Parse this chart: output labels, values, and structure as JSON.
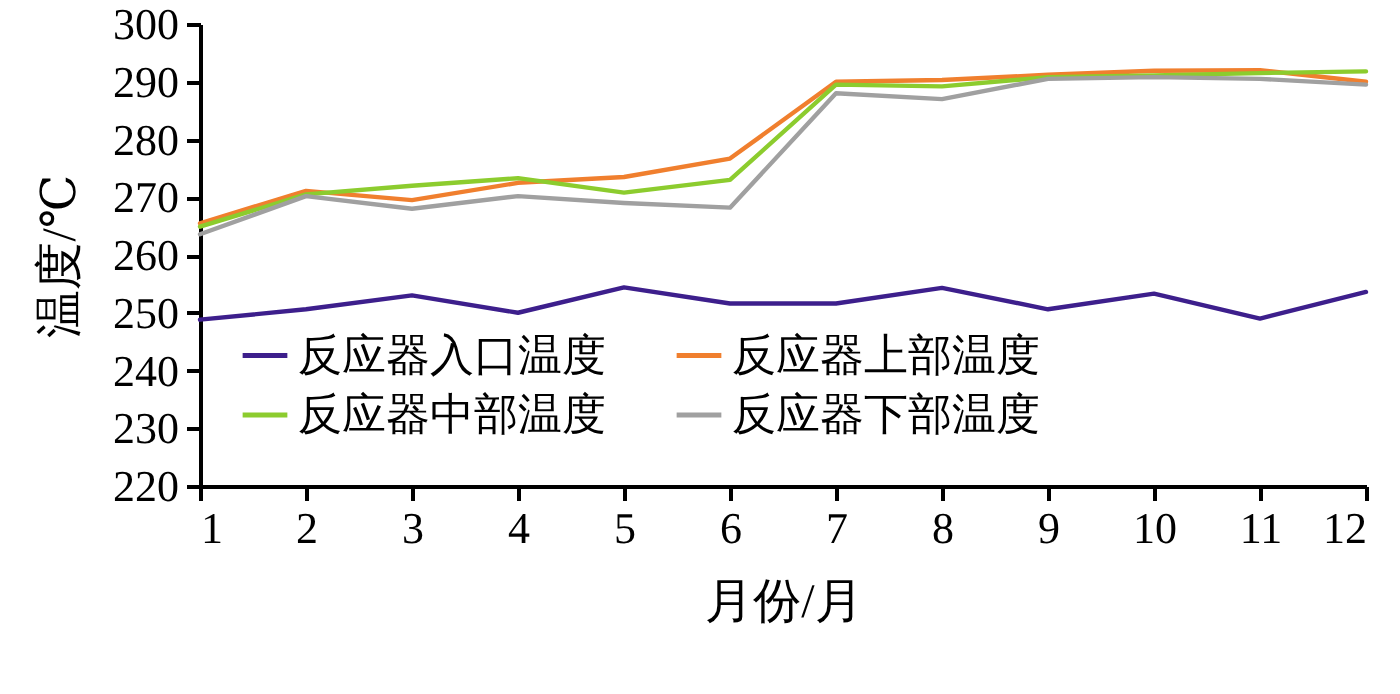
{
  "chart_data": {
    "type": "line",
    "xlabel": "月份/月",
    "ylabel": "温度/℃",
    "x": [
      1,
      2,
      3,
      4,
      5,
      6,
      7,
      8,
      9,
      10,
      11,
      12
    ],
    "xlim": [
      1,
      12
    ],
    "xticks": [
      1,
      2,
      3,
      4,
      5,
      6,
      7,
      8,
      9,
      10,
      11,
      12
    ],
    "ylim": [
      220,
      300
    ],
    "yticks": [
      220,
      230,
      240,
      250,
      260,
      270,
      280,
      290,
      300
    ],
    "grid": false,
    "legend": "bottom",
    "marker": "none",
    "line_style": "solid",
    "series": [
      {
        "name": "反应器入口温度",
        "color": "#3d1f8c",
        "values": [
          248.8,
          250.6,
          253,
          250,
          254.4,
          251.6,
          251.6,
          254.3,
          250.6,
          253.3,
          249,
          253.6
        ]
      },
      {
        "name": "反应器上部温度",
        "color": "#f07f2e",
        "values": [
          265.5,
          271.1,
          269.5,
          272.5,
          273.5,
          276.7,
          290,
          290.3,
          291.2,
          291.9,
          292,
          290
        ]
      },
      {
        "name": "反应器中部温度",
        "color": "#8ccc2e",
        "values": [
          264.9,
          270.5,
          272,
          273.3,
          270.8,
          273,
          289.5,
          289.2,
          290.8,
          291.1,
          291.5,
          291.8
        ]
      },
      {
        "name": "反应器下部温度",
        "color": "#a0a0a0",
        "values": [
          263.6,
          270.2,
          268,
          270.2,
          269,
          268.2,
          288,
          287,
          290.5,
          290.8,
          290.5,
          289.5
        ]
      }
    ]
  }
}
